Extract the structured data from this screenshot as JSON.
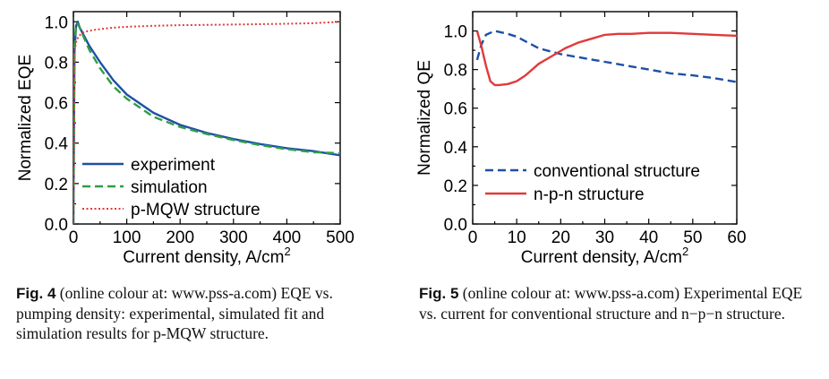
{
  "chart_data": [
    {
      "type": "line",
      "xlabel": "Current density, A/cm",
      "xlabel_sup": "2",
      "ylabel": "Normalized EQE",
      "xlim": [
        0,
        500
      ],
      "ylim": [
        0,
        1.05
      ],
      "xticks": [
        0,
        100,
        200,
        300,
        400,
        500
      ],
      "yticks": [
        0.0,
        0.2,
        0.4,
        0.6,
        0.8,
        1.0
      ],
      "xtick_labels": [
        "0",
        "100",
        "200",
        "300",
        "400",
        "500"
      ],
      "ytick_labels": [
        "0.0",
        "0.2",
        "0.4",
        "0.6",
        "0.8",
        "1.0"
      ],
      "legend_position": "bottom-left",
      "series": [
        {
          "name": "experiment",
          "color": "#1f4fa8",
          "dash": "solid",
          "x": [
            0,
            2,
            5,
            8,
            12,
            20,
            30,
            50,
            75,
            100,
            150,
            200,
            250,
            300,
            350,
            400,
            450,
            500
          ],
          "y": [
            0.0,
            0.85,
            0.98,
            1.0,
            0.97,
            0.93,
            0.88,
            0.8,
            0.71,
            0.64,
            0.55,
            0.49,
            0.45,
            0.42,
            0.395,
            0.375,
            0.36,
            0.34
          ]
        },
        {
          "name": "simulation",
          "color": "#2e9e44",
          "dash": "dashed",
          "x": [
            0,
            2,
            5,
            8,
            12,
            20,
            30,
            50,
            75,
            100,
            150,
            200,
            250,
            300,
            350,
            400,
            450,
            500
          ],
          "y": [
            0.0,
            0.88,
            0.99,
            0.99,
            0.97,
            0.92,
            0.86,
            0.77,
            0.68,
            0.62,
            0.53,
            0.48,
            0.445,
            0.415,
            0.39,
            0.37,
            0.355,
            0.35
          ]
        },
        {
          "name": "p-MQW structure",
          "color": "#e03a3a",
          "dash": "dotted",
          "x": [
            0,
            2,
            5,
            10,
            20,
            40,
            70,
            100,
            150,
            200,
            300,
            400,
            450,
            500
          ],
          "y": [
            0.0,
            0.85,
            0.9,
            0.93,
            0.95,
            0.96,
            0.97,
            0.975,
            0.98,
            0.983,
            0.986,
            0.99,
            0.993,
            1.0
          ]
        }
      ]
    },
    {
      "type": "line",
      "xlabel": "Current density, A/cm",
      "xlabel_sup": "2",
      "ylabel": "Normalized QE",
      "xlim": [
        0,
        60
      ],
      "ylim": [
        0,
        1.1
      ],
      "xticks": [
        0,
        10,
        20,
        30,
        40,
        50,
        60
      ],
      "yticks": [
        0.0,
        0.2,
        0.4,
        0.6,
        0.8,
        1.0
      ],
      "xtick_labels": [
        "0",
        "10",
        "20",
        "30",
        "40",
        "50",
        "60"
      ],
      "ytick_labels": [
        "0.0",
        "0.2",
        "0.4",
        "0.6",
        "0.8",
        "1.0"
      ],
      "legend_position": "bottom-left",
      "series": [
        {
          "name": "conventional structure",
          "color": "#1f4fa8",
          "dash": "dashed",
          "x": [
            1,
            2,
            3,
            5,
            8,
            10,
            15,
            20,
            25,
            30,
            35,
            40,
            45,
            50,
            55,
            60
          ],
          "y": [
            0.85,
            0.93,
            0.98,
            1.0,
            0.985,
            0.97,
            0.91,
            0.88,
            0.86,
            0.84,
            0.82,
            0.8,
            0.78,
            0.77,
            0.755,
            0.735
          ]
        },
        {
          "name": "n-p-n structure",
          "color": "#e03a3a",
          "dash": "solid",
          "x": [
            1,
            2,
            3,
            4,
            5,
            6,
            8,
            10,
            12,
            15,
            18,
            21,
            24,
            27,
            30,
            33,
            36,
            40,
            45,
            50,
            55,
            60
          ],
          "y": [
            1.0,
            0.92,
            0.82,
            0.74,
            0.72,
            0.72,
            0.725,
            0.74,
            0.77,
            0.83,
            0.87,
            0.91,
            0.94,
            0.96,
            0.98,
            0.985,
            0.985,
            0.99,
            0.99,
            0.985,
            0.98,
            0.975
          ]
        }
      ]
    }
  ],
  "captions": [
    {
      "label": "Fig. 4",
      "text": "(online colour at: www.pss-a.com) EQE vs. pumping density: experimental, simulated fit and simulation results for p-MQW structure."
    },
    {
      "label": "Fig. 5",
      "text": "(online colour at: www.pss-a.com) Experimental EQE vs. current for conventional structure and n−p−n structure."
    }
  ]
}
